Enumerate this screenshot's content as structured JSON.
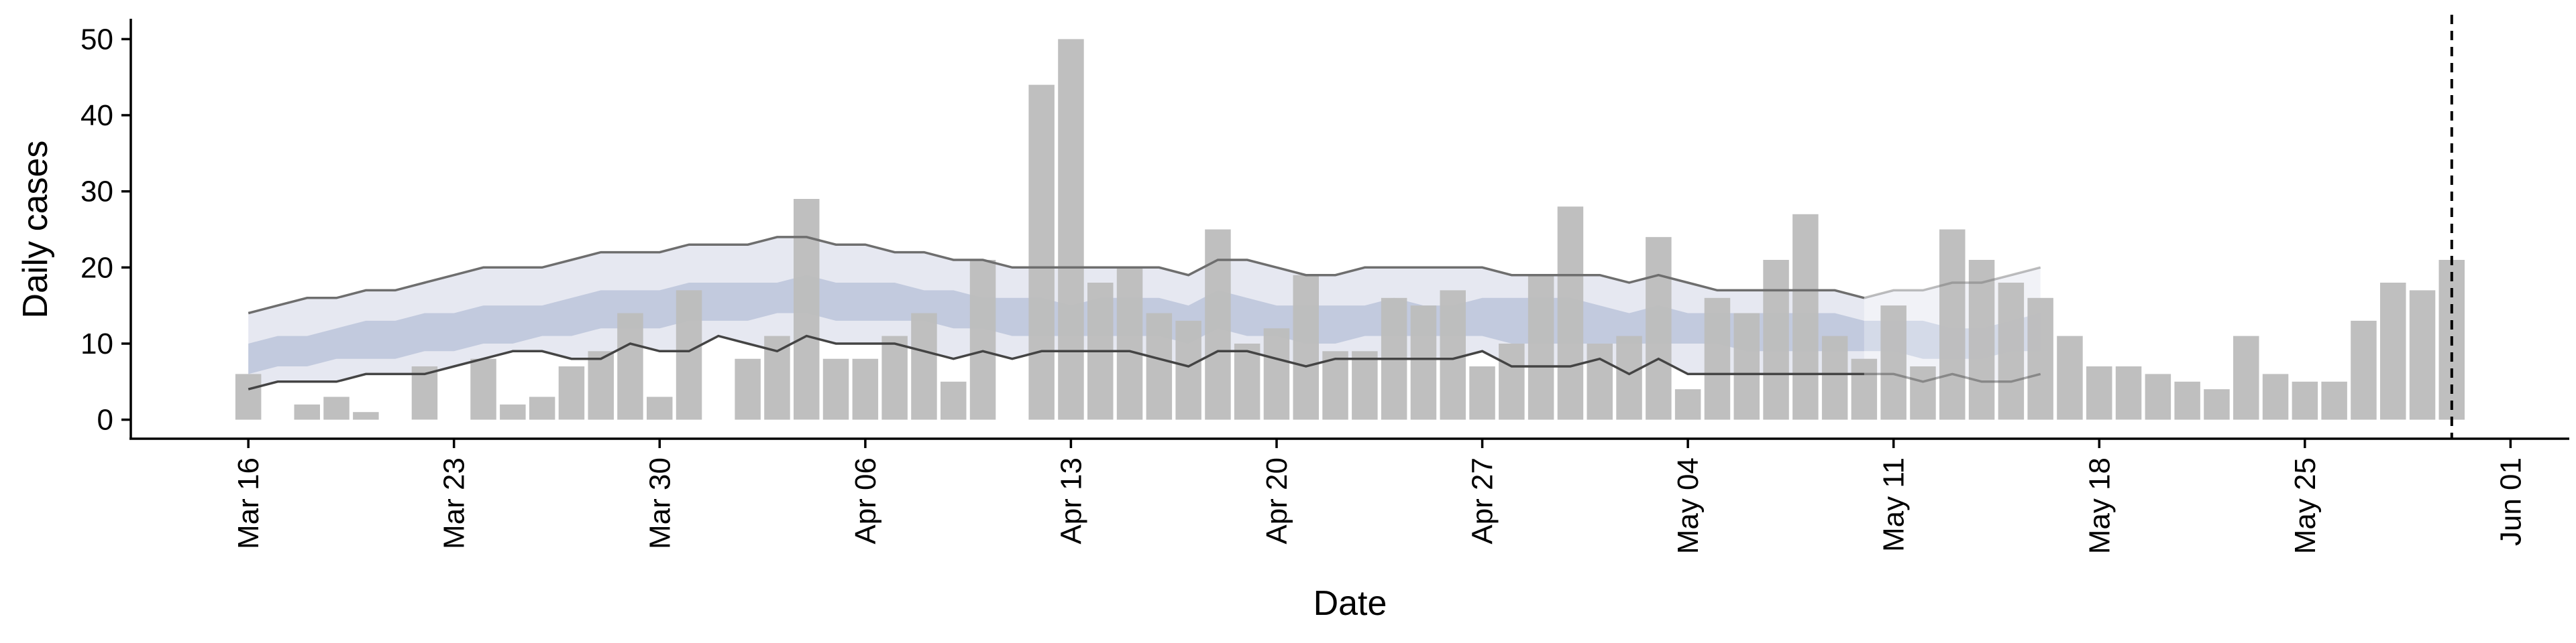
{
  "chart_data": {
    "type": "bar",
    "xlabel": "Date",
    "ylabel": "Daily cases",
    "xlim": [
      "2020-03-12",
      "2020-06-03"
    ],
    "ylim": [
      -2.5,
      52.5
    ],
    "yticks": [
      0,
      10,
      20,
      30,
      40,
      50
    ],
    "xticks": [
      {
        "date": "2020-03-16",
        "label": "Mar 16"
      },
      {
        "date": "2020-03-23",
        "label": "Mar 23"
      },
      {
        "date": "2020-03-30",
        "label": "Mar 30"
      },
      {
        "date": "2020-04-06",
        "label": "Apr 06"
      },
      {
        "date": "2020-04-13",
        "label": "Apr 13"
      },
      {
        "date": "2020-04-20",
        "label": "Apr 20"
      },
      {
        "date": "2020-04-27",
        "label": "Apr 27"
      },
      {
        "date": "2020-05-04",
        "label": "May 04"
      },
      {
        "date": "2020-05-11",
        "label": "May 11"
      },
      {
        "date": "2020-05-18",
        "label": "May 18"
      },
      {
        "date": "2020-05-25",
        "label": "May 25"
      },
      {
        "date": "2020-06-01",
        "label": "Jun 01"
      }
    ],
    "bars": {
      "start_date": "2020-03-16",
      "color": "#bdbdbd",
      "values": [
        6,
        0,
        2,
        3,
        1,
        0,
        7,
        0,
        8,
        2,
        3,
        7,
        9,
        14,
        3,
        17,
        0,
        8,
        11,
        29,
        8,
        8,
        11,
        14,
        5,
        21,
        0,
        44,
        50,
        18,
        20,
        14,
        13,
        25,
        10,
        12,
        19,
        9,
        9,
        16,
        15,
        17,
        7,
        10,
        19,
        28,
        10,
        11,
        24,
        4,
        16,
        14,
        21,
        27,
        11,
        8,
        15,
        7,
        25,
        21,
        18,
        16,
        11,
        7,
        7,
        6,
        5,
        4,
        11,
        6,
        5,
        5,
        13,
        18,
        17,
        21
      ]
    },
    "bands": {
      "start_date": "2020-03-16",
      "outer_color": "#e6e8f1",
      "inner_color": "#c2cade",
      "upper": [
        14,
        15,
        16,
        16,
        17,
        17,
        18,
        19,
        20,
        20,
        20,
        21,
        22,
        22,
        22,
        23,
        23,
        23,
        24,
        24,
        23,
        23,
        22,
        22,
        21,
        21,
        20,
        20,
        20,
        20,
        20,
        20,
        19,
        21,
        21,
        20,
        19,
        19,
        20,
        20,
        20,
        20,
        20,
        19,
        19,
        19,
        19,
        18,
        19,
        18,
        17,
        17,
        17,
        17,
        17,
        16,
        17,
        17,
        18,
        18,
        19,
        20
      ],
      "inner_upper": [
        10,
        11,
        11,
        12,
        13,
        13,
        14,
        14,
        15,
        15,
        15,
        16,
        17,
        17,
        17,
        18,
        18,
        18,
        18,
        19,
        18,
        18,
        18,
        17,
        17,
        16,
        16,
        16,
        15,
        16,
        16,
        16,
        15,
        17,
        16,
        15,
        15,
        15,
        15,
        16,
        15,
        15,
        16,
        16,
        16,
        16,
        15,
        14,
        15,
        14,
        14,
        14,
        14,
        14,
        14,
        13,
        13,
        13,
        12,
        12,
        13,
        14
      ],
      "inner_lower": [
        6,
        7,
        7,
        8,
        8,
        8,
        9,
        9,
        10,
        10,
        11,
        11,
        12,
        12,
        12,
        13,
        13,
        13,
        14,
        14,
        13,
        13,
        13,
        13,
        12,
        12,
        11,
        11,
        11,
        11,
        11,
        11,
        10,
        12,
        11,
        11,
        10,
        10,
        11,
        11,
        11,
        11,
        11,
        10,
        10,
        10,
        10,
        10,
        10,
        10,
        10,
        9,
        9,
        9,
        9,
        9,
        9,
        8,
        8,
        8,
        9,
        9
      ],
      "lower": [
        4,
        5,
        5,
        5,
        6,
        6,
        6,
        7,
        8,
        9,
        9,
        8,
        8,
        10,
        9,
        9,
        11,
        10,
        9,
        11,
        10,
        10,
        10,
        9,
        8,
        9,
        8,
        9,
        9,
        9,
        9,
        8,
        7,
        9,
        9,
        8,
        7,
        8,
        8,
        8,
        8,
        8,
        9,
        7,
        7,
        7,
        8,
        6,
        8,
        6,
        6,
        6,
        6,
        6,
        6,
        6,
        6,
        5,
        6,
        5,
        5,
        6
      ],
      "faded_from_index": 55
    },
    "vline": {
      "date": "2020-05-30"
    }
  }
}
